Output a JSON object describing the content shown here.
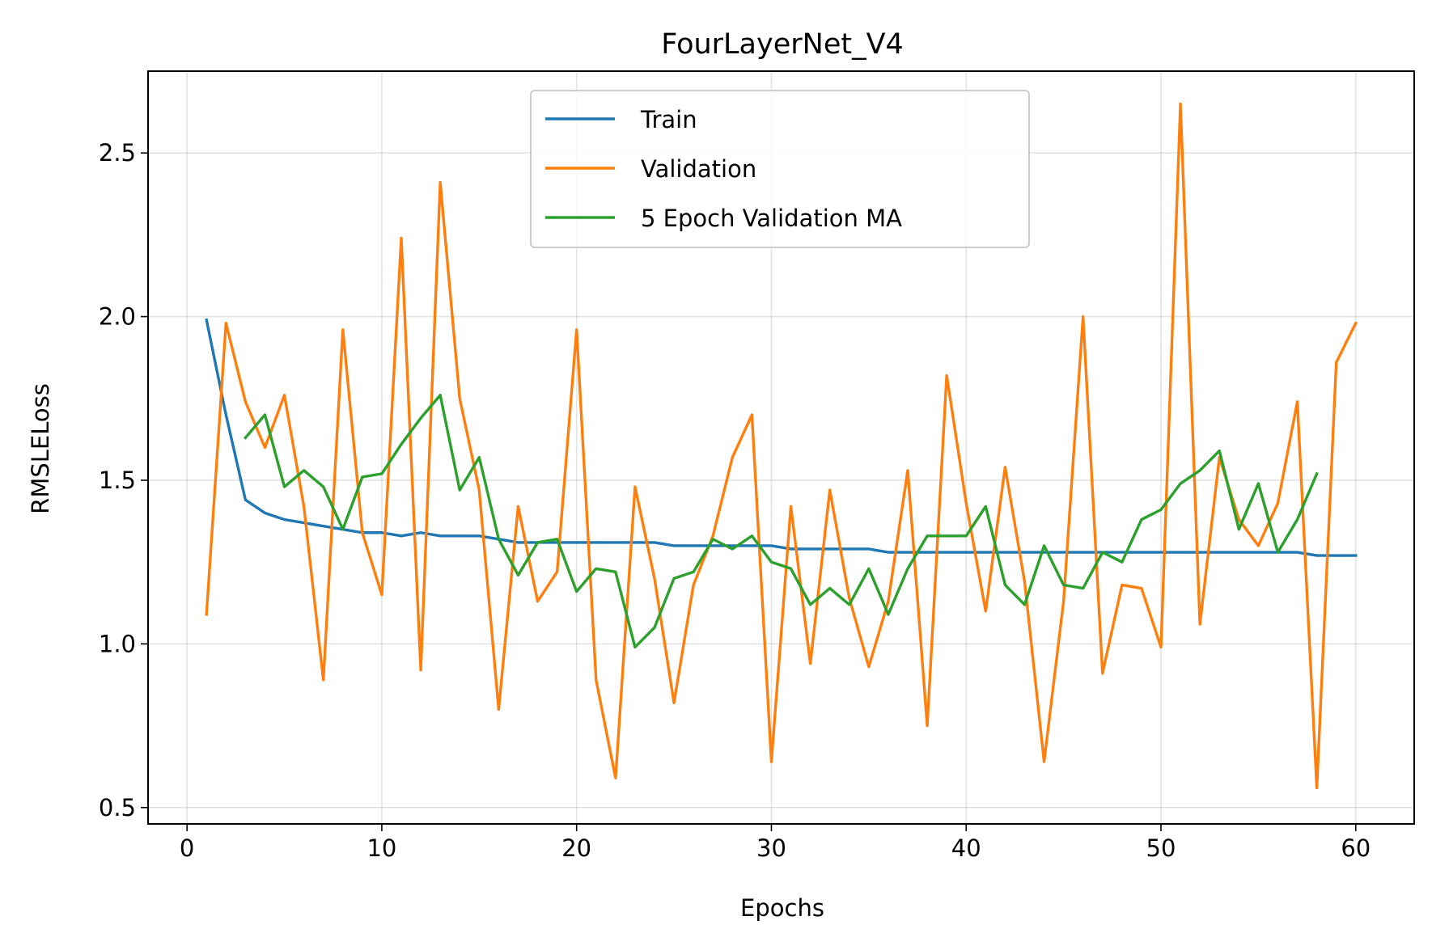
{
  "chart_data": {
    "type": "line",
    "title": "FourLayerNet_V4",
    "xlabel": "Epochs",
    "ylabel": "RMSLELoss",
    "xlim": [
      -2,
      63
    ],
    "ylim": [
      0.45,
      2.75
    ],
    "xticks": [
      0,
      10,
      20,
      30,
      40,
      50,
      60
    ],
    "yticks": [
      0.5,
      1.0,
      1.5,
      2.0,
      2.5
    ],
    "xtick_labels": [
      "0",
      "10",
      "20",
      "30",
      "40",
      "50",
      "60"
    ],
    "ytick_labels": [
      "0.5",
      "1.0",
      "1.5",
      "2.0",
      "2.5"
    ],
    "grid": true,
    "legend_position": "upper-center",
    "series": [
      {
        "name": "Train",
        "color": "#1f77b4",
        "x": [
          1,
          2,
          3,
          4,
          5,
          6,
          7,
          8,
          9,
          10,
          11,
          12,
          13,
          14,
          15,
          16,
          17,
          18,
          19,
          20,
          21,
          22,
          23,
          24,
          25,
          26,
          27,
          28,
          29,
          30,
          31,
          32,
          33,
          34,
          35,
          36,
          37,
          38,
          39,
          40,
          41,
          42,
          43,
          44,
          45,
          46,
          47,
          48,
          49,
          50,
          51,
          52,
          53,
          54,
          55,
          56,
          57,
          58,
          59,
          60
        ],
        "values": [
          1.99,
          1.7,
          1.44,
          1.4,
          1.38,
          1.37,
          1.36,
          1.35,
          1.34,
          1.34,
          1.33,
          1.34,
          1.33,
          1.33,
          1.33,
          1.32,
          1.31,
          1.31,
          1.31,
          1.31,
          1.31,
          1.31,
          1.31,
          1.31,
          1.3,
          1.3,
          1.3,
          1.3,
          1.3,
          1.3,
          1.29,
          1.29,
          1.29,
          1.29,
          1.29,
          1.28,
          1.28,
          1.28,
          1.28,
          1.28,
          1.28,
          1.28,
          1.28,
          1.28,
          1.28,
          1.28,
          1.28,
          1.28,
          1.28,
          1.28,
          1.28,
          1.28,
          1.28,
          1.28,
          1.28,
          1.28,
          1.28,
          1.27,
          1.27,
          1.27
        ]
      },
      {
        "name": "Validation",
        "color": "#ff7f0e",
        "x": [
          1,
          2,
          3,
          4,
          5,
          6,
          7,
          8,
          9,
          10,
          11,
          12,
          13,
          14,
          15,
          16,
          17,
          18,
          19,
          20,
          21,
          22,
          23,
          24,
          25,
          26,
          27,
          28,
          29,
          30,
          31,
          32,
          33,
          34,
          35,
          36,
          37,
          38,
          39,
          40,
          41,
          42,
          43,
          44,
          45,
          46,
          47,
          48,
          49,
          50,
          51,
          52,
          53,
          54,
          55,
          56,
          57,
          58,
          59,
          60
        ],
        "values": [
          1.09,
          1.98,
          1.74,
          1.6,
          1.76,
          1.42,
          0.89,
          1.96,
          1.34,
          1.15,
          2.24,
          0.92,
          2.41,
          1.75,
          1.47,
          0.8,
          1.42,
          1.13,
          1.22,
          1.96,
          0.89,
          0.59,
          1.48,
          1.2,
          0.82,
          1.18,
          1.33,
          1.57,
          1.7,
          0.64,
          1.42,
          0.94,
          1.47,
          1.14,
          0.93,
          1.13,
          1.53,
          0.75,
          1.82,
          1.43,
          1.1,
          1.54,
          1.19,
          0.64,
          1.13,
          2.0,
          0.91,
          1.18,
          1.17,
          0.99,
          2.65,
          1.06,
          1.57,
          1.38,
          1.3,
          1.43,
          1.74,
          0.56,
          1.86,
          1.98
        ]
      },
      {
        "name": "5 Epoch Validation MA",
        "color": "#2ca02c",
        "x": [
          3,
          4,
          5,
          6,
          7,
          8,
          9,
          10,
          11,
          12,
          13,
          14,
          15,
          16,
          17,
          18,
          19,
          20,
          21,
          22,
          23,
          24,
          25,
          26,
          27,
          28,
          29,
          30,
          31,
          32,
          33,
          34,
          35,
          36,
          37,
          38,
          39,
          40,
          41,
          42,
          43,
          44,
          45,
          46,
          47,
          48,
          49,
          50,
          51,
          52,
          53,
          54,
          55,
          56,
          57,
          58
        ],
        "values": [
          1.63,
          1.7,
          1.48,
          1.53,
          1.48,
          1.35,
          1.51,
          1.52,
          1.61,
          1.69,
          1.76,
          1.47,
          1.57,
          1.32,
          1.21,
          1.31,
          1.32,
          1.16,
          1.23,
          1.22,
          0.99,
          1.05,
          1.2,
          1.22,
          1.32,
          1.29,
          1.33,
          1.25,
          1.23,
          1.12,
          1.17,
          1.12,
          1.23,
          1.09,
          1.23,
          1.33,
          1.33,
          1.33,
          1.42,
          1.18,
          1.12,
          1.3,
          1.18,
          1.17,
          1.28,
          1.25,
          1.38,
          1.41,
          1.49,
          1.53,
          1.59,
          1.35,
          1.49,
          1.28,
          1.38,
          1.52
        ]
      }
    ]
  }
}
